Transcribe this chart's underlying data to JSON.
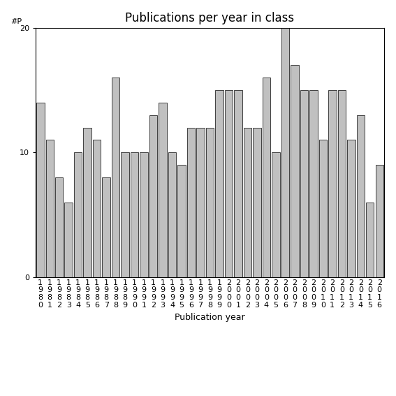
{
  "title": "Publications per year in class",
  "xlabel": "Publication year",
  "ylabel": "#P",
  "years": [
    "1980",
    "1981",
    "1982",
    "1983",
    "1984",
    "1985",
    "1986",
    "1987",
    "1988",
    "1989",
    "1990",
    "1991",
    "1992",
    "1993",
    "1994",
    "1995",
    "1996",
    "1997",
    "1998",
    "1999",
    "2000",
    "2001",
    "2002",
    "2003",
    "2004",
    "2005",
    "2006",
    "2007",
    "2008",
    "2009",
    "2010",
    "2011",
    "2012",
    "2013",
    "2014",
    "2015",
    "2016"
  ],
  "values": [
    14,
    11,
    8,
    6,
    10,
    12,
    11,
    8,
    16,
    10,
    10,
    10,
    13,
    14,
    10,
    9,
    12,
    12,
    12,
    15,
    15,
    15,
    12,
    12,
    16,
    10,
    20,
    17,
    15,
    15,
    11,
    15,
    15,
    11,
    13,
    6,
    9
  ],
  "bar_color": "#c0c0c0",
  "bar_edge_color": "#404040",
  "ylim": [
    0,
    20
  ],
  "yticks": [
    0,
    10,
    20
  ],
  "title_fontsize": 12,
  "label_fontsize": 9,
  "tick_fontsize": 8,
  "figsize": [
    5.67,
    5.67
  ],
  "dpi": 100
}
